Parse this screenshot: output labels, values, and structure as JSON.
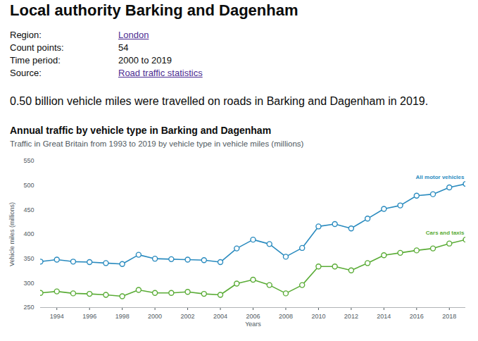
{
  "header": {
    "title": "Local authority Barking and Dagenham",
    "details": [
      {
        "label": "Region:",
        "value": "London",
        "link": true
      },
      {
        "label": "Count points:",
        "value": 54,
        "link": false
      },
      {
        "label": "Time period:",
        "value": "2000 to 2019",
        "link": false
      },
      {
        "label": "Source:",
        "value": "Road traffic statistics",
        "link": true
      }
    ],
    "summary": "0.50 billion vehicle miles were travelled on roads in Barking and Dagenham in 2019."
  },
  "chart_data": {
    "type": "line",
    "title": "Annual traffic by vehicle type in Barking and Dagenham",
    "subtitle": "Traffic in Great Britain from 1993 to 2019 by vehicle type in vehicle miles (millions)",
    "x_label": "Years",
    "y_label": "Vehicle miles (millions)",
    "x": [
      1993,
      1994,
      1995,
      1996,
      1997,
      1998,
      1999,
      2000,
      2001,
      2002,
      2003,
      2004,
      2005,
      2006,
      2007,
      2008,
      2009,
      2010,
      2011,
      2012,
      2013,
      2014,
      2015,
      2016,
      2017,
      2018,
      2019
    ],
    "series": [
      {
        "name": "All motor vehicles",
        "color": "#2a8bbf",
        "marker": "circle",
        "values": [
          344,
          348,
          344,
          343,
          341,
          339,
          358,
          350,
          349,
          348,
          347,
          343,
          371,
          389,
          380,
          354,
          372,
          416,
          421,
          412,
          432,
          452,
          459,
          479,
          482,
          496,
          503
        ]
      },
      {
        "name": "Cars and taxis",
        "color": "#5aac36",
        "marker": "circle",
        "values": [
          280,
          283,
          279,
          278,
          276,
          273,
          286,
          280,
          280,
          282,
          278,
          276,
          299,
          307,
          296,
          279,
          296,
          334,
          334,
          326,
          341,
          357,
          362,
          367,
          371,
          381,
          389
        ]
      }
    ],
    "xlim": [
      1993,
      2019
    ],
    "xticks": [
      1994,
      1996,
      1998,
      2000,
      2002,
      2004,
      2006,
      2008,
      2010,
      2012,
      2014,
      2016,
      2018
    ],
    "ylim": [
      250,
      550
    ],
    "yticks": [
      250,
      300,
      350,
      400,
      450,
      500,
      550
    ],
    "grid": false
  }
}
